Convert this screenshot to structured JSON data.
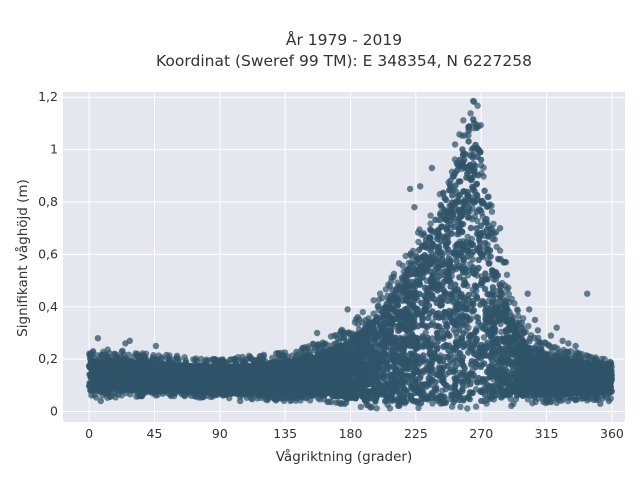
{
  "chart_data": {
    "type": "scatter",
    "title": "År 1979 - 2019",
    "subtitle": "Koordinat (Sweref 99 TM): E 348354, N 6227258",
    "xlabel": "Vågriktning (grader)",
    "ylabel": "Signifikant våghöjd (m)",
    "xlim": [
      -18,
      369
    ],
    "ylim": [
      -0.04,
      1.22
    ],
    "x_ticks": [
      0,
      45,
      90,
      135,
      180,
      225,
      270,
      315,
      360
    ],
    "x_tick_labels": [
      "0",
      "45",
      "90",
      "135",
      "180",
      "225",
      "270",
      "315",
      "360"
    ],
    "y_ticks": [
      0,
      0.2,
      0.4,
      0.6,
      0.8,
      1,
      1.2
    ],
    "y_tick_labels": [
      "0",
      "0,2",
      "0,4",
      "0,6",
      "0,8",
      "1",
      "1,2"
    ],
    "grid": true,
    "background": "#e5e7ef",
    "grid_color": "#ffffff",
    "point_color": "#2f5469",
    "envelope": {
      "x": [
        0,
        20,
        45,
        90,
        135,
        160,
        180,
        200,
        225,
        245,
        255,
        262,
        265,
        268,
        272,
        280,
        290,
        300,
        315,
        340,
        360
      ],
      "y_top": [
        0.23,
        0.24,
        0.22,
        0.2,
        0.23,
        0.27,
        0.33,
        0.45,
        0.68,
        0.92,
        1.1,
        1.18,
        1.19,
        1.18,
        1.0,
        0.72,
        0.48,
        0.34,
        0.26,
        0.22,
        0.2
      ],
      "y_bottom": [
        0.05,
        0.05,
        0.06,
        0.05,
        0.04,
        0.04,
        0.02,
        0.01,
        0.01,
        0.01,
        0.01,
        0.01,
        0.01,
        0.01,
        0.02,
        0.02,
        0.02,
        0.03,
        0.03,
        0.04,
        0.05
      ],
      "core_top": [
        0.19,
        0.2,
        0.18,
        0.17,
        0.19,
        0.22,
        0.27,
        0.37,
        0.6,
        0.82,
        0.98,
        1.1,
        1.12,
        1.08,
        0.86,
        0.55,
        0.36,
        0.26,
        0.22,
        0.19,
        0.18
      ],
      "core_bottom": [
        0.07,
        0.08,
        0.08,
        0.07,
        0.06,
        0.06,
        0.05,
        0.04,
        0.03,
        0.03,
        0.03,
        0.04,
        0.04,
        0.04,
        0.04,
        0.05,
        0.06,
        0.06,
        0.06,
        0.07,
        0.07
      ]
    },
    "outliers": [
      {
        "x": 6,
        "y": 0.28
      },
      {
        "x": 25,
        "y": 0.26
      },
      {
        "x": 28,
        "y": 0.27
      },
      {
        "x": 46,
        "y": 0.25
      },
      {
        "x": 104,
        "y": 0.04
      },
      {
        "x": 157,
        "y": 0.3
      },
      {
        "x": 173,
        "y": 0.3
      },
      {
        "x": 178,
        "y": 0.39
      },
      {
        "x": 185,
        "y": 0.36
      },
      {
        "x": 221,
        "y": 0.85
      },
      {
        "x": 224,
        "y": 0.78
      },
      {
        "x": 228,
        "y": 0.86
      },
      {
        "x": 236,
        "y": 0.93
      },
      {
        "x": 252,
        "y": 1.02
      },
      {
        "x": 276,
        "y": 0.79
      },
      {
        "x": 283,
        "y": 0.7
      },
      {
        "x": 287,
        "y": 0.57
      },
      {
        "x": 302,
        "y": 0.45
      },
      {
        "x": 303,
        "y": 0.39
      },
      {
        "x": 307,
        "y": 0.35
      },
      {
        "x": 309,
        "y": 0.31
      },
      {
        "x": 318,
        "y": 0.29
      },
      {
        "x": 322,
        "y": 0.32
      },
      {
        "x": 326,
        "y": 0.27
      },
      {
        "x": 330,
        "y": 0.26
      },
      {
        "x": 335,
        "y": 0.25
      },
      {
        "x": 343,
        "y": 0.45
      },
      {
        "x": 348,
        "y": 0.2
      },
      {
        "x": 358,
        "y": 0.04
      },
      {
        "x": 352,
        "y": 0.03
      },
      {
        "x": 8,
        "y": 0.04
      }
    ]
  }
}
